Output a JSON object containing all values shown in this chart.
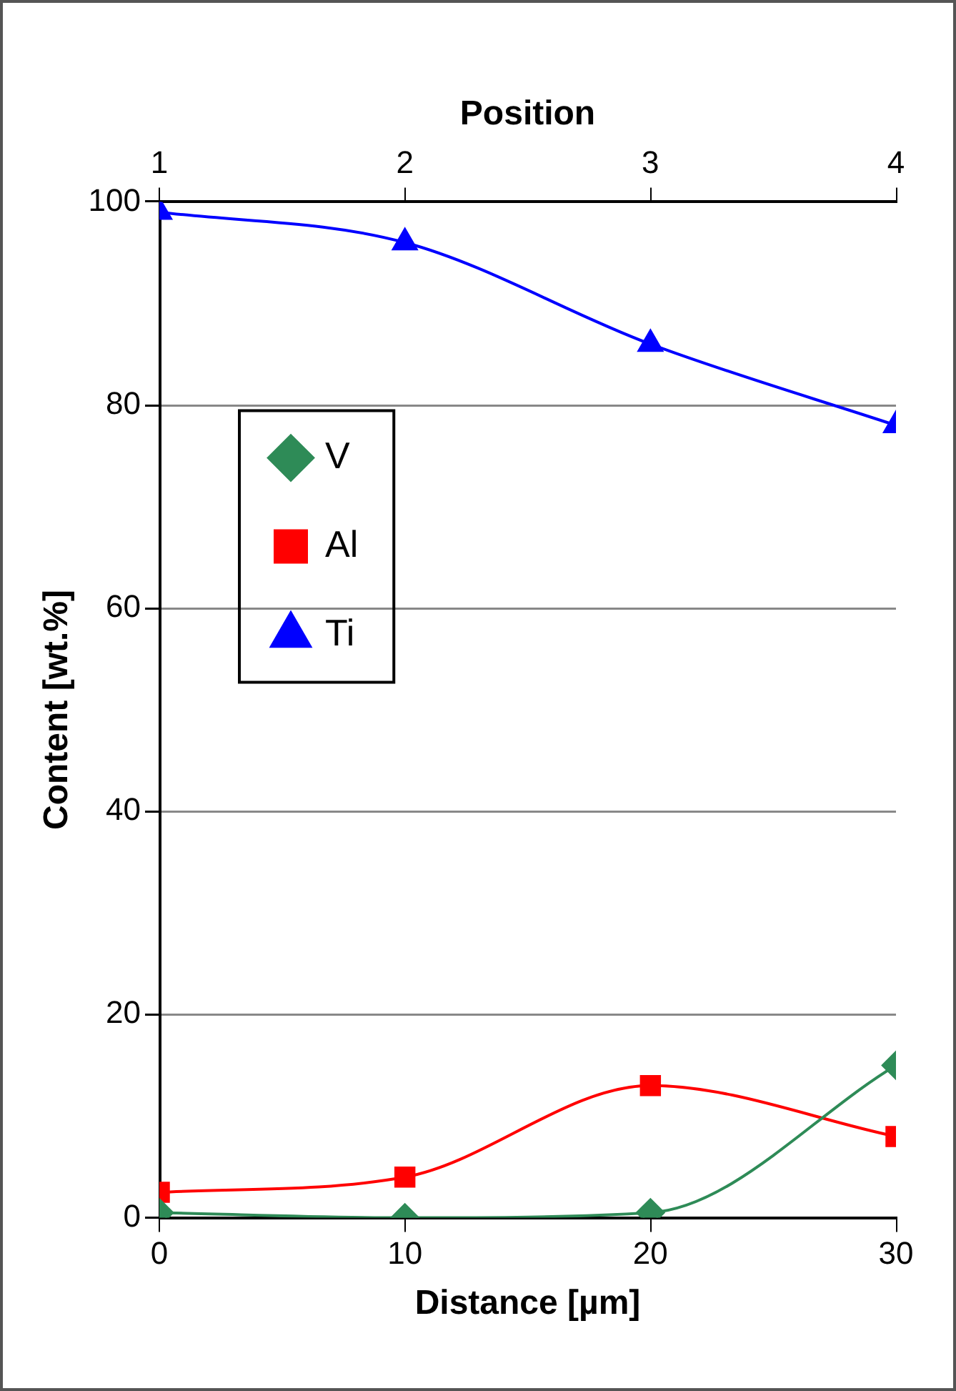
{
  "chart_data": {
    "type": "line",
    "xlabel": "Distance [µm]",
    "ylabel": "Content [wt.%]",
    "x2label": "Position",
    "x": [
      0,
      10,
      20,
      30
    ],
    "xlim": [
      0,
      30
    ],
    "xticks": [
      0,
      10,
      20,
      30
    ],
    "x2lim": [
      1,
      4
    ],
    "x2ticks": [
      1,
      2,
      3,
      4
    ],
    "ylim": [
      0,
      100
    ],
    "yticks": [
      0,
      20,
      40,
      60,
      80,
      100
    ],
    "grid": "y",
    "legend": "left",
    "series": [
      {
        "name": "V",
        "color": "#2e8b57",
        "marker": "diamond",
        "values": [
          0.5,
          0,
          0.5,
          15
        ]
      },
      {
        "name": "Al",
        "color": "#ff0000",
        "marker": "square",
        "values": [
          2.5,
          4,
          13,
          8
        ]
      },
      {
        "name": "Ti",
        "color": "#0000ff",
        "marker": "triangle",
        "values": [
          99,
          96,
          86,
          78
        ]
      }
    ]
  }
}
